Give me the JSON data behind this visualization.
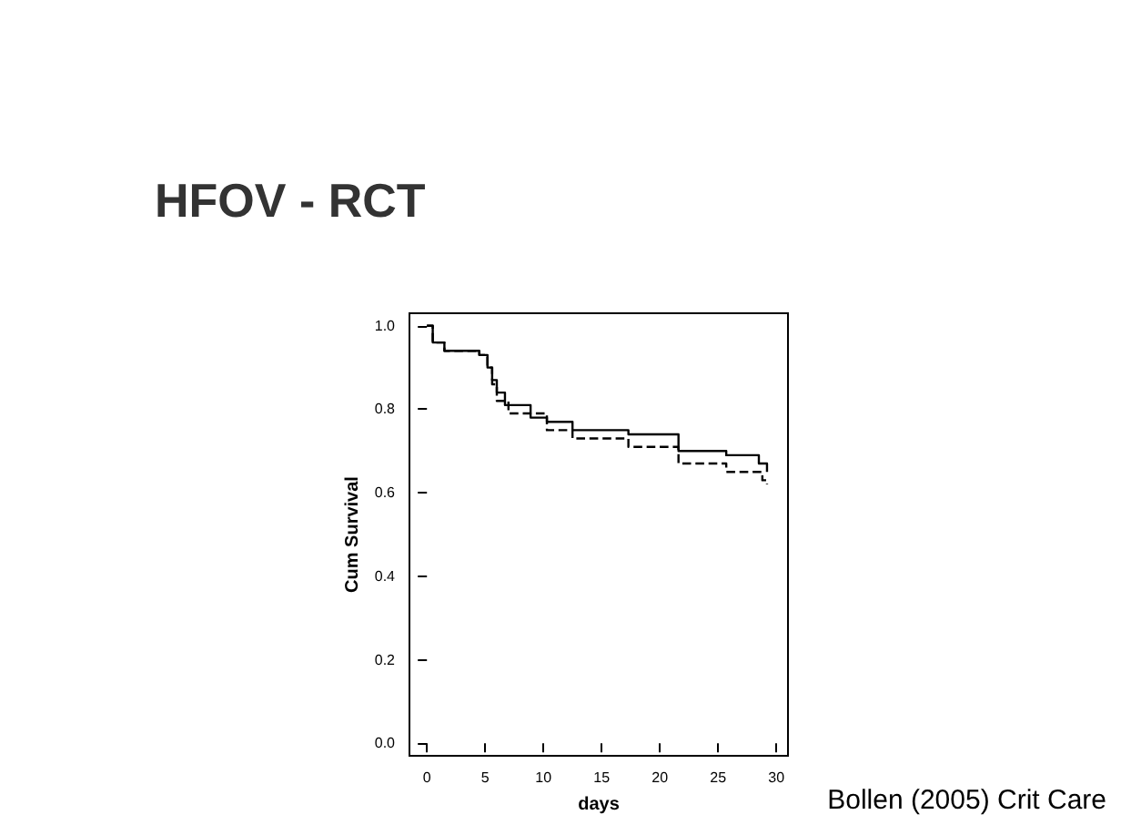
{
  "chart_data": {
    "type": "step",
    "title": "HFOV - RCT",
    "xlabel": "days",
    "ylabel": "Cum Survival",
    "annotations": [
      "Bollen (2005) Crit Care"
    ],
    "xlim": [
      -1.5,
      31
    ],
    "xticks": [
      0,
      5,
      10,
      15,
      20,
      25,
      30
    ],
    "ylim": [
      -0.03,
      1.03
    ],
    "yticks": [
      {
        "value": 0,
        "label": "0.0"
      },
      {
        "value": 0.2,
        "label": "0.2"
      },
      {
        "value": 0.4,
        "label": "0.4"
      },
      {
        "value": 0.6,
        "label": "0.6"
      },
      {
        "value": 0.8,
        "label": "0.8"
      },
      {
        "value": 1,
        "label": "1.0"
      }
    ],
    "grid": false,
    "series": [
      {
        "color": "#000000",
        "line_style": "solid",
        "x": [
          0,
          0.5,
          1.5,
          4.5,
          5.2,
          5.6,
          6,
          6.7,
          8.9,
          10.3,
          12.5,
          17.3,
          21.6,
          25.7,
          28.5,
          29.2
        ],
        "values": [
          1,
          0.96,
          0.94,
          0.93,
          0.9,
          0.87,
          0.84,
          0.81,
          0.78,
          0.77,
          0.75,
          0.74,
          0.7,
          0.69,
          0.67,
          0.65
        ]
      },
      {
        "color": "#000000",
        "line_style": "dashed",
        "x": [
          0,
          0.5,
          1.5,
          4.5,
          5.2,
          5.6,
          6,
          7,
          10.3,
          12.5,
          17.3,
          21.6,
          25.7,
          28.8,
          29.2
        ],
        "values": [
          1,
          0.96,
          0.94,
          0.93,
          0.9,
          0.86,
          0.82,
          0.79,
          0.75,
          0.73,
          0.71,
          0.67,
          0.65,
          0.63,
          0.62
        ]
      }
    ]
  }
}
